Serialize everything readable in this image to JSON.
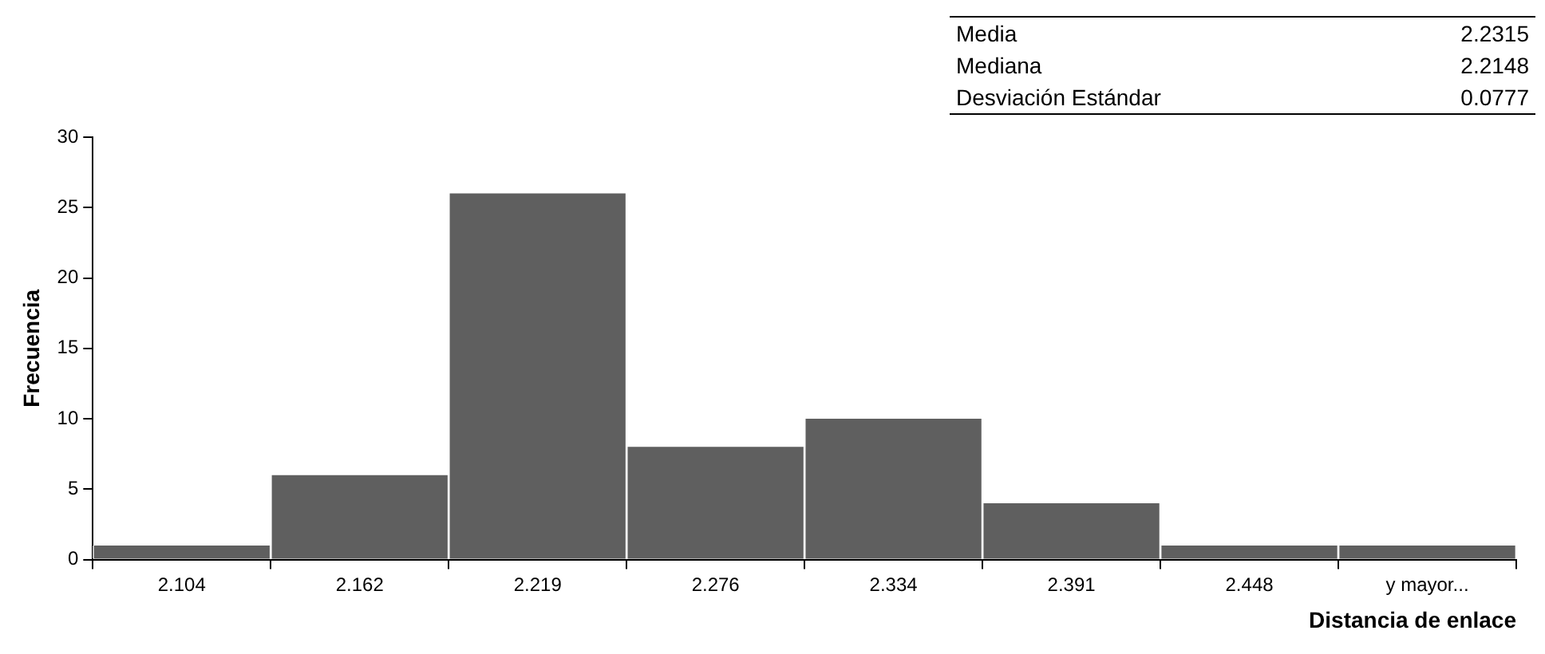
{
  "chart_data": {
    "type": "bar",
    "categories": [
      "2.104",
      "2.162",
      "2.219",
      "2.276",
      "2.334",
      "2.391",
      "2.448",
      "y mayor..."
    ],
    "values": [
      1,
      6,
      26,
      8,
      10,
      4,
      1,
      1
    ],
    "color": "#5f5f5f",
    "xlabel": "Distancia de enlace",
    "ylabel": "Frecuencia",
    "ylim": [
      0,
      30
    ],
    "yticks": [
      0,
      5,
      10,
      15,
      20,
      25,
      30
    ],
    "grid": false,
    "legend": false,
    "annotations": [
      "Media",
      "2.2315",
      "Mediana",
      "2.2148",
      "Desviación Estándar",
      "0.0777"
    ]
  }
}
